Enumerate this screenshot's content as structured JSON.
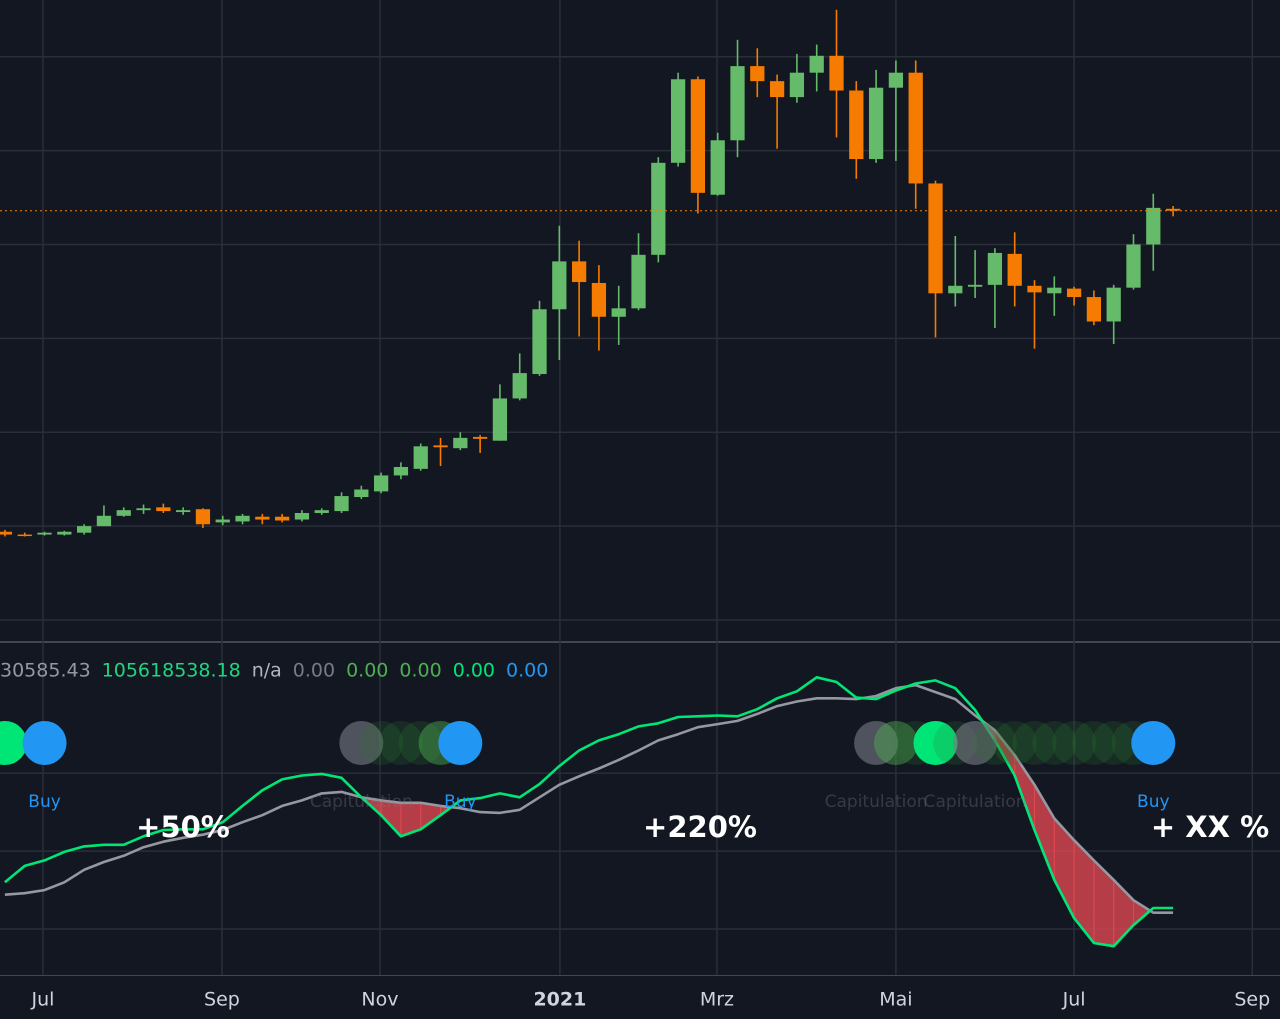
{
  "chart_data": [
    {
      "type": "candlestick",
      "x": [
        0,
        1,
        2,
        3,
        4,
        5,
        6,
        7,
        8,
        9,
        10,
        11,
        12,
        13,
        14,
        15,
        16,
        17,
        18,
        19,
        20,
        21,
        22,
        23,
        24,
        25,
        26,
        27,
        28,
        29,
        30,
        31,
        32,
        33,
        34,
        35,
        36,
        37,
        38,
        39,
        40,
        41,
        42,
        43,
        44,
        45,
        46,
        47,
        48,
        49,
        50,
        51,
        52,
        53,
        54,
        55,
        56,
        57,
        58,
        59
      ],
      "open": [
        9.4,
        9.1,
        9.1,
        9.1,
        9.3,
        10.0,
        11.1,
        11.7,
        12.0,
        11.5,
        11.8,
        10.4,
        10.5,
        11.0,
        11.0,
        10.7,
        11.4,
        11.6,
        13.1,
        13.7,
        15.4,
        16.1,
        18.6,
        18.3,
        19.5,
        19.1,
        23.6,
        26.2,
        33.1,
        38.2,
        35.9,
        32.3,
        33.2,
        38.9,
        48.7,
        57.6,
        45.3,
        51.1,
        59.0,
        57.4,
        55.7,
        58.3,
        60.1,
        56.4,
        49.1,
        56.7,
        58.3,
        46.5,
        34.8,
        35.5,
        35.7,
        39.0,
        35.6,
        34.8,
        35.3,
        34.4,
        31.8,
        35.4,
        40.0,
        43.8
      ],
      "high": [
        9.6,
        9.3,
        9.4,
        9.5,
        10.2,
        12.2,
        12.0,
        12.3,
        12.4,
        12.0,
        11.9,
        11.1,
        11.3,
        11.3,
        11.3,
        11.7,
        11.9,
        13.6,
        14.3,
        15.7,
        16.8,
        18.8,
        19.4,
        20.0,
        19.7,
        25.1,
        28.4,
        34.0,
        42.0,
        40.4,
        37.8,
        35.6,
        41.2,
        49.3,
        58.3,
        57.9,
        51.9,
        61.8,
        60.9,
        58.1,
        60.3,
        61.3,
        65.0,
        57.4,
        58.6,
        59.6,
        59.6,
        46.8,
        40.9,
        39.4,
        39.6,
        41.3,
        36.2,
        36.6,
        35.5,
        35.1,
        35.7,
        41.1,
        45.4,
        44.1
      ],
      "low": [
        8.9,
        8.9,
        9.0,
        9.0,
        9.1,
        10.0,
        11.0,
        11.3,
        11.4,
        11.2,
        9.8,
        10.1,
        10.2,
        10.2,
        10.4,
        10.5,
        11.2,
        11.4,
        12.9,
        13.5,
        15.0,
        15.9,
        16.4,
        18.1,
        17.8,
        19.1,
        23.4,
        26.0,
        27.7,
        30.2,
        28.7,
        29.3,
        33.0,
        38.1,
        48.3,
        43.3,
        45.2,
        49.3,
        55.7,
        50.2,
        55.1,
        56.3,
        51.4,
        47.0,
        48.7,
        48.9,
        43.8,
        30.1,
        33.4,
        34.3,
        31.1,
        33.4,
        28.9,
        32.4,
        33.5,
        31.4,
        29.4,
        35.2,
        37.2,
        43.0
      ],
      "close": [
        9.1,
        9.0,
        9.3,
        9.4,
        10.0,
        11.1,
        11.7,
        11.9,
        11.6,
        11.7,
        10.2,
        10.7,
        11.1,
        10.7,
        10.6,
        11.4,
        11.7,
        13.2,
        13.9,
        15.4,
        16.3,
        18.5,
        18.4,
        19.4,
        19.3,
        23.6,
        26.3,
        33.1,
        38.2,
        36.0,
        32.3,
        33.2,
        38.9,
        48.7,
        57.6,
        45.5,
        51.1,
        59.0,
        57.4,
        55.7,
        58.3,
        60.1,
        56.4,
        49.1,
        56.7,
        58.3,
        46.5,
        34.8,
        35.6,
        35.7,
        39.1,
        35.6,
        34.9,
        35.4,
        34.4,
        31.8,
        35.4,
        40.0,
        43.9,
        43.6
      ],
      "up_color": "#66bb6a",
      "down_color": "#f57c00",
      "xlim": [
        -0.25,
        64.4
      ],
      "xticks": [
        {
          "value": 1.92,
          "label": "Jul"
        },
        {
          "value": 10.96,
          "label": "Sep"
        },
        {
          "value": 18.94,
          "label": "Nov"
        },
        {
          "value": 28.03,
          "label": "2021"
        },
        {
          "value": 35.96,
          "label": "Mrz"
        },
        {
          "value": 45.0,
          "label": "Mai"
        },
        {
          "value": 54.0,
          "label": "Jul"
        },
        {
          "value": 63.0,
          "label": "Sep"
        }
      ],
      "ylim": [
        0,
        66
      ],
      "yticks": [
        0,
        10,
        20,
        30,
        40,
        50,
        60
      ],
      "grid": true,
      "last_price_line": true
    },
    {
      "type": "line",
      "header": [
        {
          "text": "30585.43",
          "color": "#9598a1"
        },
        {
          "text": "105618538.18",
          "color": "#22d47e"
        },
        {
          "text": "n/a",
          "color": "#b2b5be"
        },
        {
          "text": "0.00",
          "color": "#787b86"
        },
        {
          "text": "0.00",
          "color": "#4caf50"
        },
        {
          "text": "0.00",
          "color": "#4caf50"
        },
        {
          "text": "0.00",
          "color": "#00e676"
        },
        {
          "text": "0.00",
          "color": "#2196f3"
        }
      ],
      "x": [
        0,
        1,
        2,
        3,
        4,
        5,
        6,
        7,
        8,
        9,
        10,
        11,
        12,
        13,
        14,
        15,
        16,
        17,
        18,
        19,
        20,
        21,
        22,
        23,
        24,
        25,
        26,
        27,
        28,
        29,
        30,
        31,
        32,
        33,
        34,
        35,
        36,
        37,
        38,
        39,
        40,
        41,
        42,
        43,
        44,
        45,
        46,
        47,
        48,
        49,
        50,
        51,
        52,
        53,
        54,
        55,
        56,
        57,
        58,
        59
      ],
      "series": [
        {
          "color": "#00e676",
          "values": [
            160,
            181,
            188,
            199,
            206,
            208,
            208,
            219,
            227,
            228,
            228,
            237,
            258,
            278,
            292,
            297,
            299,
            294,
            269,
            246,
            219,
            228,
            246,
            265,
            268,
            274,
            269,
            286,
            309,
            329,
            342,
            350,
            360,
            364,
            372,
            373,
            374,
            373,
            382,
            396,
            405,
            423,
            417,
            397,
            395,
            406,
            415,
            419,
            409,
            381,
            342,
            297,
            227,
            163,
            114,
            82,
            78,
            105,
            127,
            127
          ]
        },
        {
          "color": "#9598a1",
          "values": [
            144,
            146,
            150,
            160,
            176,
            186,
            194,
            205,
            212,
            217,
            221,
            227,
            237,
            246,
            258,
            265,
            274,
            276,
            269,
            265,
            262,
            262,
            258,
            255,
            250,
            249,
            253,
            269,
            285,
            296,
            306,
            317,
            329,
            342,
            350,
            359,
            363,
            367,
            376,
            386,
            392,
            396,
            396,
            395,
            399,
            409,
            413,
            404,
            395,
            374,
            355,
            323,
            285,
            242,
            214,
            188,
            163,
            137,
            121,
            121
          ]
        }
      ],
      "fill_color": "rgba(226,72,82,0.78)",
      "ylim": [
        41,
        467
      ],
      "yticks": [
        100,
        200,
        300
      ],
      "grid": true,
      "markers": [
        {
          "x": 0,
          "color": "#00e676"
        },
        {
          "x": 2,
          "color": "#2196f3"
        },
        {
          "x": 18,
          "color": "rgba(120,123,134,0.6)"
        },
        {
          "x": 19,
          "color": "rgba(46,125,50,0.22)"
        },
        {
          "x": 20,
          "color": "rgba(46,125,50,0.22)"
        },
        {
          "x": 21,
          "color": "rgba(46,125,50,0.22)"
        },
        {
          "x": 22,
          "color": "rgba(76,175,80,0.45)"
        },
        {
          "x": 23,
          "color": "#2196f3"
        },
        {
          "x": 44,
          "color": "rgba(120,123,134,0.6)"
        },
        {
          "x": 45,
          "color": "rgba(76,175,80,0.45)"
        },
        {
          "x": 46,
          "color": "rgba(46,125,50,0.22)"
        },
        {
          "x": 47,
          "color": "#00e676"
        },
        {
          "x": 48,
          "color": "rgba(46,125,50,0.22)"
        },
        {
          "x": 49,
          "color": "rgba(120,123,134,0.6)"
        },
        {
          "x": 50,
          "color": "rgba(46,125,50,0.22)"
        },
        {
          "x": 51,
          "color": "rgba(46,125,50,0.22)"
        },
        {
          "x": 52,
          "color": "rgba(46,125,50,0.22)"
        },
        {
          "x": 53,
          "color": "rgba(46,125,50,0.22)"
        },
        {
          "x": 54,
          "color": "rgba(46,125,50,0.22)"
        },
        {
          "x": 55,
          "color": "rgba(46,125,50,0.22)"
        },
        {
          "x": 56,
          "color": "rgba(46,125,50,0.22)"
        },
        {
          "x": 57,
          "color": "rgba(46,125,50,0.22)"
        },
        {
          "x": 58,
          "color": "#2196f3"
        }
      ],
      "labels": [
        {
          "x": 2,
          "text": "Buy",
          "color": "#2196f3"
        },
        {
          "x": 18,
          "text": "Capitulation",
          "color": "rgba(120,123,134,0.35)"
        },
        {
          "x": 23,
          "text": "Buy",
          "color": "#2196f3"
        },
        {
          "x": 44,
          "text": "Capitulation",
          "color": "rgba(120,123,134,0.35)"
        },
        {
          "x": 49,
          "text": "Capitulation",
          "color": "rgba(120,123,134,0.35)"
        },
        {
          "x": 58,
          "text": "Buy",
          "color": "#2196f3"
        }
      ],
      "annotations": [
        "+50%",
        "+220%",
        "+ XX %"
      ]
    }
  ]
}
